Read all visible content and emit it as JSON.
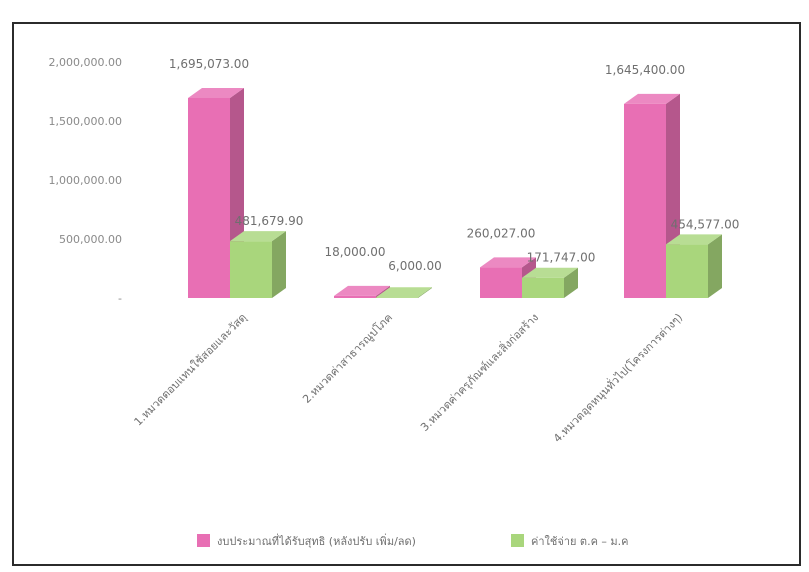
{
  "chart_data": {
    "type": "bar",
    "categories": [
      "1.หมวดตอบแทนใช้สอยและวัสดุ",
      "2.หมวดค่าสาธารณูปโภค",
      "3.หมวดค่าครุภัณฑ์และสิ่งก่อสร้าง",
      "4.หมวดอุดหนุนทั่วไป(โครงการต่างๆ)"
    ],
    "series": [
      {
        "name": "งบประมาณที่ได้รับสุทธิ (หลังปรับ เพิ่ม/ลด)",
        "values": [
          1695073.0,
          18000.0,
          260027.0,
          1645400.0
        ],
        "labels": [
          "1,695,073.00",
          "18,000.00",
          "260,027.00",
          "1,645,400.00"
        ],
        "color": "#e86fb4"
      },
      {
        "name": "ค่าใช้จ่าย ต.ค – ม.ค",
        "values": [
          481679.9,
          6000.0,
          171747.0,
          454577.0
        ],
        "labels": [
          "481,679.90",
          "6,000.00",
          "171,747.00",
          "454,577.00"
        ],
        "color": "#a9d67c"
      }
    ],
    "ylim": [
      0,
      2000000
    ],
    "yticks": [
      0,
      500000,
      1000000,
      1500000,
      2000000
    ],
    "ytick_labels": [
      "-",
      "500,000.00",
      "1,000,000.00",
      "1,500,000.00",
      "2,000,000.00"
    ],
    "grid": false,
    "legend": "bottom",
    "title": "",
    "xlabel": "",
    "ylabel": ""
  }
}
